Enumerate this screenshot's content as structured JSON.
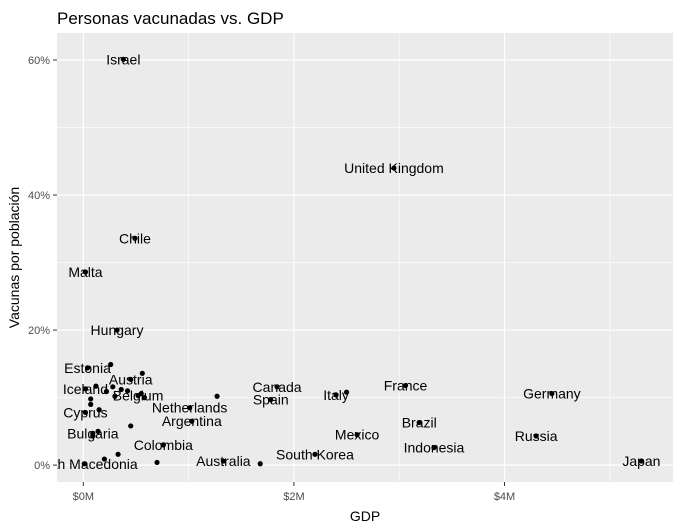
{
  "chart_data": {
    "type": "scatter",
    "title": "Personas vacunadas vs. GDP",
    "xlabel": "GDP",
    "ylabel": "Vacunas por población",
    "xlim": [
      -0.25,
      5.6
    ],
    "ylim": [
      -2.5,
      64
    ],
    "x_ticks": [
      {
        "value": 0,
        "label": "$0M"
      },
      {
        "value": 2,
        "label": "$2M"
      },
      {
        "value": 4,
        "label": "$4M"
      }
    ],
    "y_ticks": [
      {
        "value": 0,
        "label": "0%"
      },
      {
        "value": 20,
        "label": "20%"
      },
      {
        "value": 40,
        "label": "40%"
      },
      {
        "value": 60,
        "label": "60%"
      }
    ],
    "grid": true,
    "colors": {
      "panel": "#ebebeb",
      "grid": "#ffffff",
      "point": "#000000",
      "text": "#000000",
      "tick_text": "#4d4d4d"
    },
    "labeled_points": [
      {
        "label": "Israel",
        "x": 0.38,
        "y": 60.1
      },
      {
        "label": "United Kingdom",
        "x": 2.95,
        "y": 44.0
      },
      {
        "label": "Chile",
        "x": 0.49,
        "y": 33.6
      },
      {
        "label": "Malta",
        "x": 0.02,
        "y": 28.6
      },
      {
        "label": "Hungary",
        "x": 0.32,
        "y": 20.0
      },
      {
        "label": "Estonia",
        "x": 0.04,
        "y": 14.4
      },
      {
        "label": "Austria",
        "x": 0.45,
        "y": 12.7
      },
      {
        "label": "Iceland",
        "x": 0.02,
        "y": 11.3
      },
      {
        "label": "Belgium",
        "x": 0.52,
        "y": 10.3
      },
      {
        "label": "Canada",
        "x": 1.84,
        "y": 11.6
      },
      {
        "label": "France",
        "x": 3.06,
        "y": 11.8
      },
      {
        "label": "Italy",
        "x": 2.4,
        "y": 10.4
      },
      {
        "label": "Germany",
        "x": 4.45,
        "y": 10.6
      },
      {
        "label": "Spain",
        "x": 1.78,
        "y": 9.7
      },
      {
        "label": "Netherlands",
        "x": 1.01,
        "y": 8.5
      },
      {
        "label": "Cyprus",
        "x": 0.02,
        "y": 7.8
      },
      {
        "label": "Argentina",
        "x": 1.03,
        "y": 6.5
      },
      {
        "label": "Brazil",
        "x": 3.19,
        "y": 6.3
      },
      {
        "label": "Bulgaria",
        "x": 0.09,
        "y": 4.7
      },
      {
        "label": "Mexico",
        "x": 2.6,
        "y": 4.5
      },
      {
        "label": "Russia",
        "x": 4.3,
        "y": 4.3
      },
      {
        "label": "Colombia",
        "x": 0.76,
        "y": 3.0
      },
      {
        "label": "Indonesia",
        "x": 3.33,
        "y": 2.6
      },
      {
        "label": "South Korea",
        "x": 2.2,
        "y": 1.6
      },
      {
        "label": "Australia",
        "x": 1.33,
        "y": 0.6
      },
      {
        "label": "North Macedonia",
        "x": 0.01,
        "y": 0.2
      },
      {
        "label": "Japan",
        "x": 5.3,
        "y": 0.6
      }
    ],
    "unlabeled_points": [
      {
        "x": 0.26,
        "y": 14.9
      },
      {
        "x": 0.56,
        "y": 13.6
      },
      {
        "x": 0.12,
        "y": 11.7
      },
      {
        "x": 0.28,
        "y": 11.6
      },
      {
        "x": 0.36,
        "y": 11.2
      },
      {
        "x": 0.42,
        "y": 11.0
      },
      {
        "x": 0.22,
        "y": 10.9
      },
      {
        "x": 0.55,
        "y": 10.6
      },
      {
        "x": 0.3,
        "y": 10.2
      },
      {
        "x": 0.58,
        "y": 10.0
      },
      {
        "x": 0.07,
        "y": 9.8
      },
      {
        "x": 1.27,
        "y": 10.2
      },
      {
        "x": 2.5,
        "y": 10.8
      },
      {
        "x": 0.07,
        "y": 9.0
      },
      {
        "x": 0.15,
        "y": 8.2
      },
      {
        "x": 0.45,
        "y": 5.8
      },
      {
        "x": 0.14,
        "y": 5.0
      },
      {
        "x": 0.09,
        "y": 4.3
      },
      {
        "x": 0.33,
        "y": 1.6
      },
      {
        "x": 0.2,
        "y": 0.9
      },
      {
        "x": 0.7,
        "y": 0.4
      },
      {
        "x": 1.68,
        "y": 0.2
      }
    ]
  }
}
